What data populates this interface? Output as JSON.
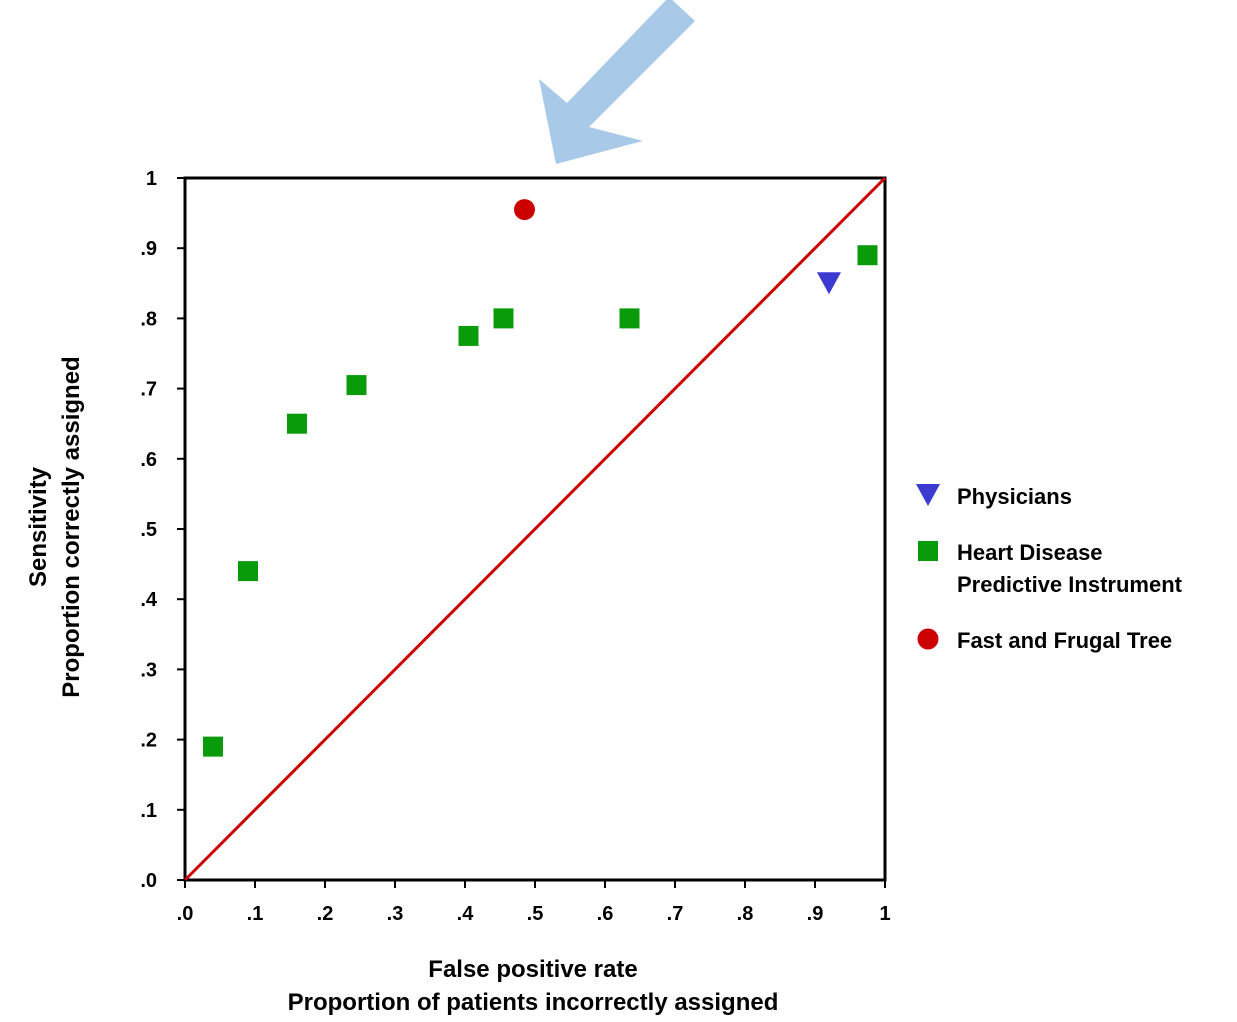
{
  "chart_data": {
    "type": "scatter",
    "xlabel": [
      "False positive rate",
      "Proportion of patients incorrectly assigned"
    ],
    "ylabel": [
      "Sensitivity",
      "Proportion correctly assigned"
    ],
    "xlim": [
      0,
      1
    ],
    "ylim": [
      0,
      1
    ],
    "x_ticks": [
      {
        "value": 0.0,
        "label": ".0"
      },
      {
        "value": 0.1,
        "label": ".1"
      },
      {
        "value": 0.2,
        "label": ".2"
      },
      {
        "value": 0.3,
        "label": ".3"
      },
      {
        "value": 0.4,
        "label": ".4"
      },
      {
        "value": 0.5,
        "label": ".5"
      },
      {
        "value": 0.6,
        "label": ".6"
      },
      {
        "value": 0.7,
        "label": ".7"
      },
      {
        "value": 0.8,
        "label": ".8"
      },
      {
        "value": 0.9,
        "label": ".9"
      },
      {
        "value": 1.0,
        "label": "1"
      }
    ],
    "y_ticks": [
      {
        "value": 0.0,
        "label": ".0"
      },
      {
        "value": 0.1,
        "label": ".1"
      },
      {
        "value": 0.2,
        "label": ".2"
      },
      {
        "value": 0.3,
        "label": ".3"
      },
      {
        "value": 0.4,
        "label": ".4"
      },
      {
        "value": 0.5,
        "label": ".5"
      },
      {
        "value": 0.6,
        "label": ".6"
      },
      {
        "value": 0.7,
        "label": ".7"
      },
      {
        "value": 0.8,
        "label": ".8"
      },
      {
        "value": 0.9,
        "label": ".9"
      },
      {
        "value": 1.0,
        "label": "1"
      }
    ],
    "reference_line": {
      "from": [
        0,
        0
      ],
      "to": [
        1,
        1
      ],
      "color": "#cc0000"
    },
    "series": [
      {
        "name": "Physicians",
        "marker": "triangle-down",
        "color": "#3b3bd1",
        "points": [
          [
            0.92,
            0.85
          ]
        ]
      },
      {
        "name": [
          "Heart Disease",
          "Predictive Instrument"
        ],
        "marker": "square",
        "color": "#0a9b0a",
        "points": [
          [
            0.04,
            0.19
          ],
          [
            0.09,
            0.44
          ],
          [
            0.16,
            0.65
          ],
          [
            0.245,
            0.705
          ],
          [
            0.405,
            0.775
          ],
          [
            0.455,
            0.8
          ],
          [
            0.635,
            0.8
          ],
          [
            0.975,
            0.89
          ]
        ]
      },
      {
        "name": "Fast and Frugal Tree",
        "marker": "circle",
        "color": "#cc0000",
        "points": [
          [
            0.485,
            0.955
          ]
        ]
      }
    ],
    "annotation": {
      "type": "arrow",
      "color": "#a9c9e8",
      "points_to": [
        0.53,
        1.02
      ]
    },
    "grid": false,
    "legend_position": "right"
  }
}
